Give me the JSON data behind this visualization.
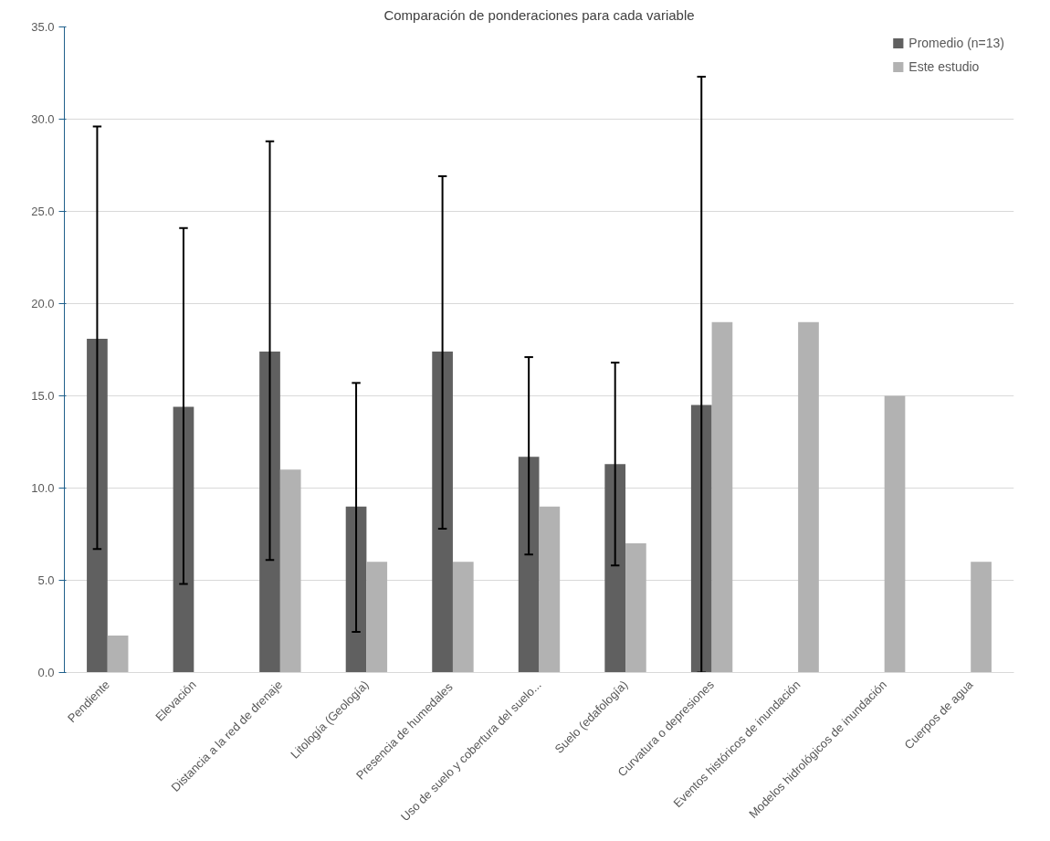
{
  "chart_data": {
    "type": "bar",
    "title": "Comparación de ponderaciones para cada variable",
    "categories": [
      "Pendiente",
      "Elevación",
      "Distancia a la red de drenaje",
      "Litología (Geología)",
      "Presencia de  humedales",
      "Uso de suelo y cobertura del suelo...",
      "Suelo (edafología)",
      "Curvatura o depresiones",
      "Eventos históricos de inundación",
      "Modelos hidrológicos de inundación",
      "Cuerpos de agua"
    ],
    "series": [
      {
        "name": "Promedio (n=13)",
        "color": "#606060",
        "values": [
          18.1,
          14.4,
          17.4,
          9.0,
          17.4,
          11.7,
          11.3,
          14.5,
          null,
          null,
          null
        ],
        "errors": [
          [
            6.7,
            29.6
          ],
          [
            4.8,
            24.1
          ],
          [
            6.1,
            28.8
          ],
          [
            2.2,
            15.7
          ],
          [
            7.8,
            26.9
          ],
          [
            6.4,
            17.1
          ],
          [
            5.8,
            16.8
          ],
          [
            0,
            32.3
          ],
          null,
          null,
          null
        ]
      },
      {
        "name": "Este estudio",
        "color": "#b2b2b2",
        "values": [
          2,
          null,
          11,
          6,
          6,
          9,
          7,
          19,
          19,
          15,
          6
        ]
      }
    ],
    "ylim": [
      0,
      35
    ],
    "yticks": [
      {
        "value": 0,
        "label": "0.0"
      },
      {
        "value": 5,
        "label": "5.0"
      },
      {
        "value": 10,
        "label": "10.0"
      },
      {
        "value": 15,
        "label": "15.0"
      },
      {
        "value": 20,
        "label": "20.0"
      },
      {
        "value": 25,
        "label": "25.0"
      },
      {
        "value": 30,
        "label": "30.0"
      },
      {
        "value": 35,
        "label": "35.0"
      }
    ],
    "grid": "y",
    "legend": "top right"
  }
}
